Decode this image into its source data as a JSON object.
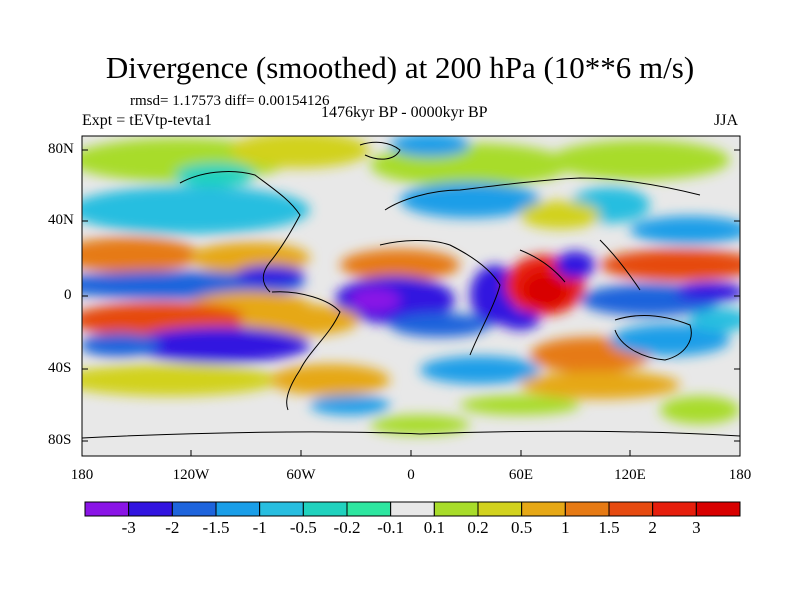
{
  "title": "Divergence (smoothed) at 200 hPa (10**6 m/s)",
  "stats": {
    "rmsd_label": "rmsd= 1.17573 diff= 0.00154126"
  },
  "period": "1476kyr BP - 0000kyr BP",
  "experiment": "Expt = tEVtp-tevta1",
  "season": "JJA",
  "map": {
    "y_ticks": [
      "80N",
      "40N",
      "0",
      "40S",
      "80S"
    ],
    "x_ticks": [
      "180",
      "120W",
      "60W",
      "0",
      "60E",
      "120E",
      "180"
    ]
  },
  "colorbar": {
    "labels": [
      "-3",
      "-2",
      "-1.5",
      "-1",
      "-0.5",
      "-0.2",
      "-0.1",
      "0.1",
      "0.2",
      "0.5",
      "1",
      "1.5",
      "2",
      "3"
    ],
    "colors": [
      "#8a14e6",
      "#3214e0",
      "#1e64dc",
      "#1a9ee8",
      "#28bee0",
      "#20d2be",
      "#2ee6a0",
      "#e8e8e8",
      "#a8dc2a",
      "#d2d21e",
      "#e6a816",
      "#e67a14",
      "#e64a10",
      "#e61e0c",
      "#d80000"
    ]
  }
}
